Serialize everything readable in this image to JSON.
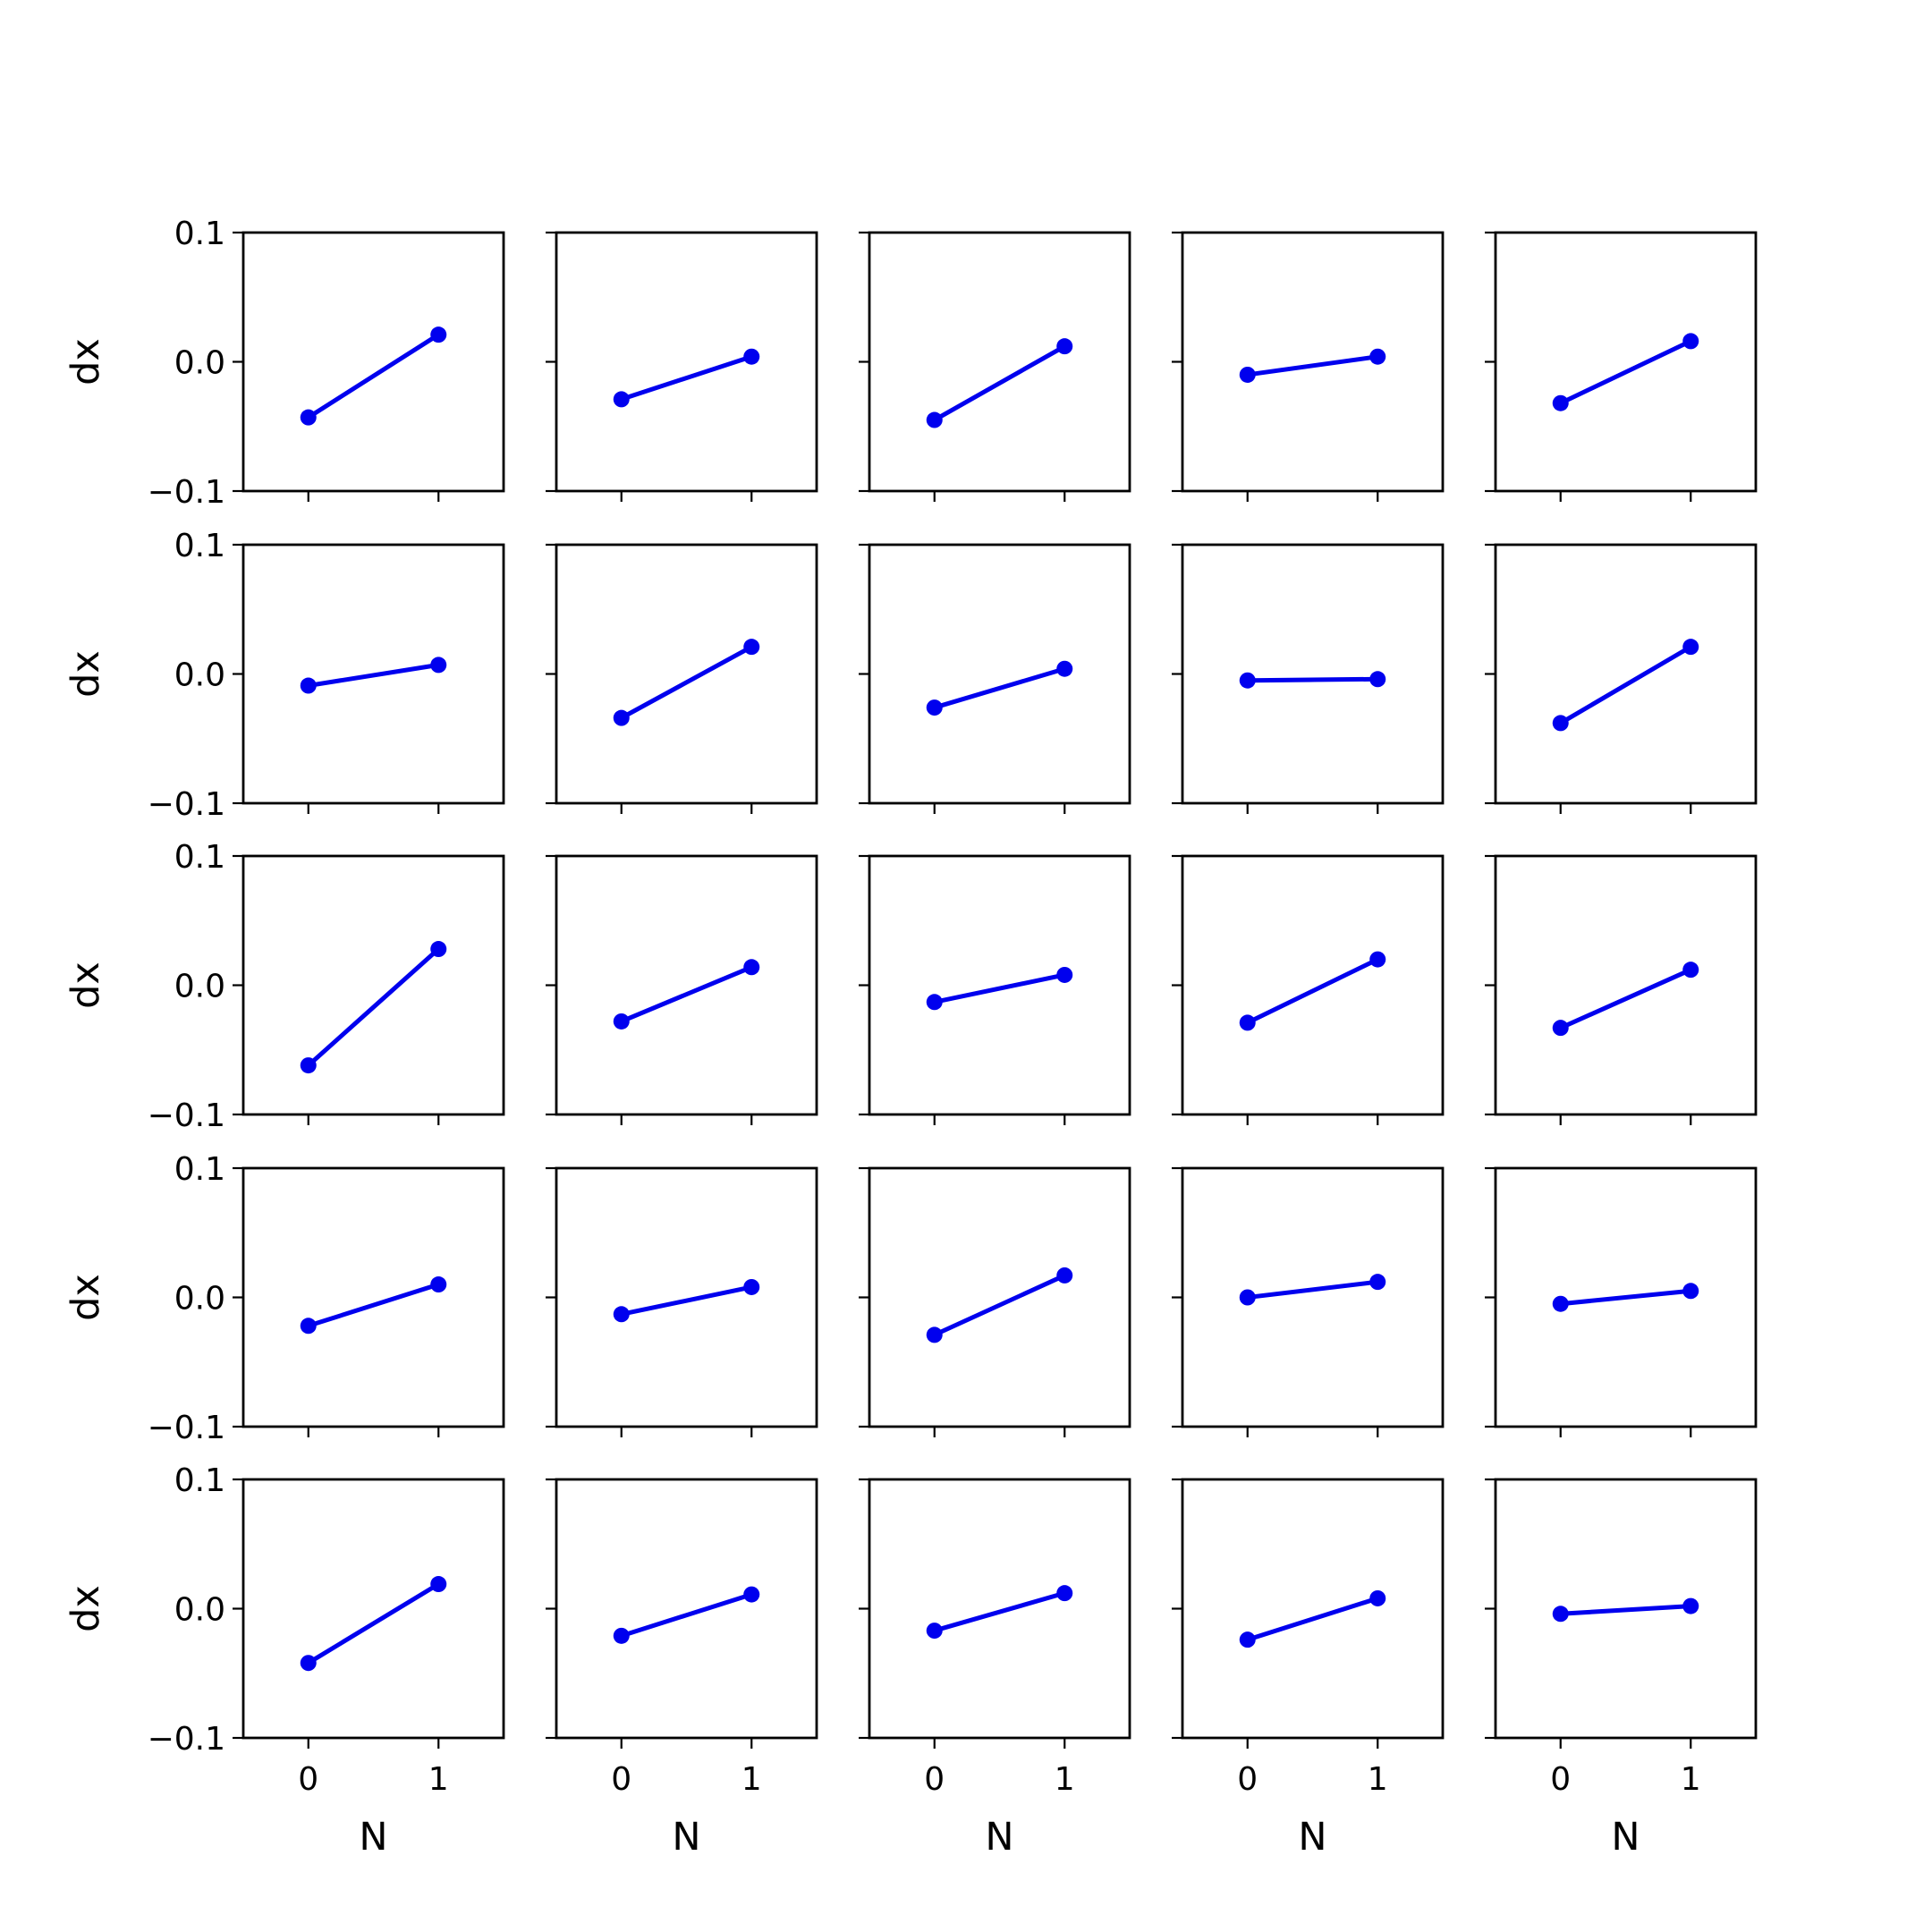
{
  "chart_data": {
    "type": "line",
    "layout": "5x5 grid of subplots",
    "xlabel": "N",
    "ylabel": "dx",
    "x": [
      0,
      1
    ],
    "xticks": [
      "0",
      "1"
    ],
    "xlim": [
      -0.5,
      1.5
    ],
    "ylim": [
      -0.1,
      0.1
    ],
    "yticks": [
      "−0.1",
      "0.0",
      "0.1"
    ],
    "grid": false,
    "legend": false,
    "line_color": "#0000ee",
    "panels": [
      [
        [
          -0.043,
          0.021
        ],
        [
          -0.029,
          0.004
        ],
        [
          -0.045,
          0.012
        ],
        [
          -0.01,
          0.004
        ],
        [
          -0.032,
          0.016
        ]
      ],
      [
        [
          -0.009,
          0.007
        ],
        [
          -0.034,
          0.021
        ],
        [
          -0.026,
          0.004
        ],
        [
          -0.005,
          -0.004
        ],
        [
          -0.038,
          0.021
        ]
      ],
      [
        [
          -0.062,
          0.028
        ],
        [
          -0.028,
          0.014
        ],
        [
          -0.013,
          0.008
        ],
        [
          -0.029,
          0.02
        ],
        [
          -0.033,
          0.012
        ]
      ],
      [
        [
          -0.022,
          0.01
        ],
        [
          -0.013,
          0.008
        ],
        [
          -0.029,
          0.017
        ],
        [
          0.0,
          0.012
        ],
        [
          -0.005,
          0.005
        ]
      ],
      [
        [
          -0.042,
          0.019
        ],
        [
          -0.021,
          0.011
        ],
        [
          -0.017,
          0.012
        ],
        [
          -0.024,
          0.008
        ],
        [
          -0.004,
          0.002
        ]
      ]
    ]
  }
}
